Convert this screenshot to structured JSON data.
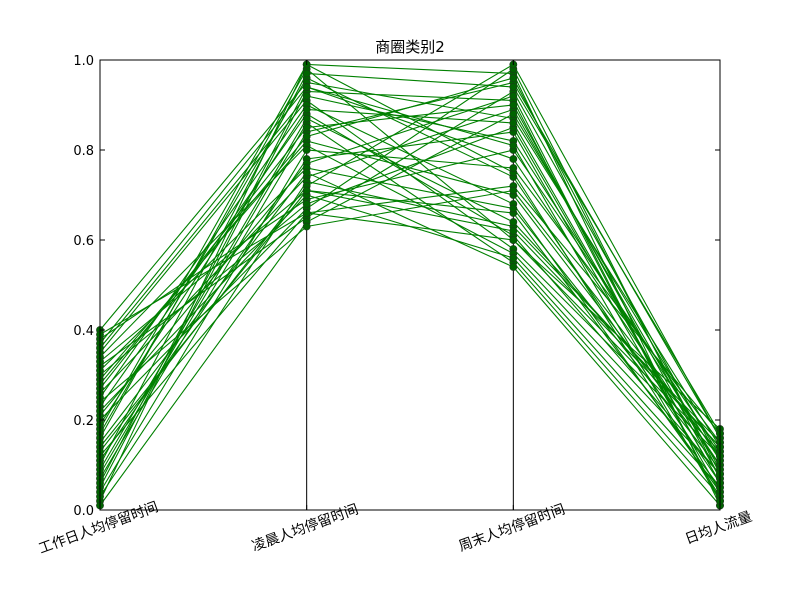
{
  "chart_data": {
    "type": "line",
    "title": "商圈类别2",
    "categories": [
      "工作日人均停留时间",
      "凌晨人均停留时间",
      "周末人均停留时间",
      "日均人流量"
    ],
    "ylim": [
      0,
      1.0
    ],
    "yticks": [
      "0.0",
      "0.2",
      "0.4",
      "0.6",
      "0.8",
      "1.0"
    ],
    "grid": false,
    "legend": "none",
    "line_color": "#008000",
    "marker_color": "#006400",
    "series": [
      {
        "values": [
          0.02,
          0.99,
          0.97,
          0.01
        ]
      },
      {
        "values": [
          0.05,
          0.93,
          0.91,
          0.02
        ]
      },
      {
        "values": [
          0.08,
          0.86,
          0.55,
          0.03
        ]
      },
      {
        "values": [
          0.11,
          0.78,
          0.84,
          0.04
        ]
      },
      {
        "values": [
          0.14,
          0.71,
          0.66,
          0.05
        ]
      },
      {
        "values": [
          0.17,
          0.96,
          0.74,
          0.06
        ]
      },
      {
        "values": [
          0.2,
          0.67,
          0.98,
          0.07
        ]
      },
      {
        "values": [
          0.23,
          0.88,
          0.61,
          0.08
        ]
      },
      {
        "values": [
          0.26,
          0.74,
          0.89,
          0.09
        ]
      },
      {
        "values": [
          0.29,
          0.82,
          0.7,
          0.1
        ]
      },
      {
        "values": [
          0.32,
          0.65,
          0.93,
          0.11
        ]
      },
      {
        "values": [
          0.35,
          0.91,
          0.58,
          0.12
        ]
      },
      {
        "values": [
          0.38,
          0.69,
          0.8,
          0.13
        ]
      },
      {
        "values": [
          0.4,
          0.95,
          0.87,
          0.14
        ]
      },
      {
        "values": [
          0.03,
          0.73,
          0.63,
          0.15
        ]
      },
      {
        "values": [
          0.07,
          0.84,
          0.95,
          0.16
        ]
      },
      {
        "values": [
          0.12,
          0.66,
          0.72,
          0.17
        ]
      },
      {
        "values": [
          0.16,
          0.98,
          0.6,
          0.18
        ]
      },
      {
        "values": [
          0.21,
          0.77,
          0.92,
          0.02
        ]
      },
      {
        "values": [
          0.25,
          0.9,
          0.68,
          0.04
        ]
      },
      {
        "values": [
          0.3,
          0.68,
          0.85,
          0.06
        ]
      },
      {
        "values": [
          0.34,
          0.81,
          0.57,
          0.08
        ]
      },
      {
        "values": [
          0.37,
          0.94,
          0.78,
          0.1
        ]
      },
      {
        "values": [
          0.01,
          0.64,
          0.88,
          0.12
        ]
      },
      {
        "values": [
          0.09,
          0.87,
          0.64,
          0.14
        ]
      },
      {
        "values": [
          0.13,
          0.72,
          0.99,
          0.16
        ]
      },
      {
        "values": [
          0.18,
          0.99,
          0.75,
          0.03
        ]
      },
      {
        "values": [
          0.22,
          0.7,
          0.56,
          0.05
        ]
      },
      {
        "values": [
          0.27,
          0.85,
          0.9,
          0.07
        ]
      },
      {
        "values": [
          0.31,
          0.76,
          0.67,
          0.09
        ]
      },
      {
        "values": [
          0.36,
          0.92,
          0.82,
          0.11
        ]
      },
      {
        "values": [
          0.39,
          0.66,
          0.6,
          0.13
        ]
      },
      {
        "values": [
          0.04,
          0.8,
          0.76,
          0.15
        ]
      },
      {
        "values": [
          0.1,
          0.97,
          0.94,
          0.17
        ]
      },
      {
        "values": [
          0.15,
          0.75,
          0.54,
          0.01
        ]
      },
      {
        "values": [
          0.19,
          0.89,
          0.86,
          0.06
        ]
      },
      {
        "values": [
          0.24,
          0.63,
          0.71,
          0.12
        ]
      },
      {
        "values": [
          0.28,
          0.83,
          0.96,
          0.08
        ]
      },
      {
        "values": [
          0.33,
          0.71,
          0.62,
          0.14
        ]
      },
      {
        "values": [
          0.06,
          0.94,
          0.81,
          0.02
        ]
      }
    ]
  }
}
